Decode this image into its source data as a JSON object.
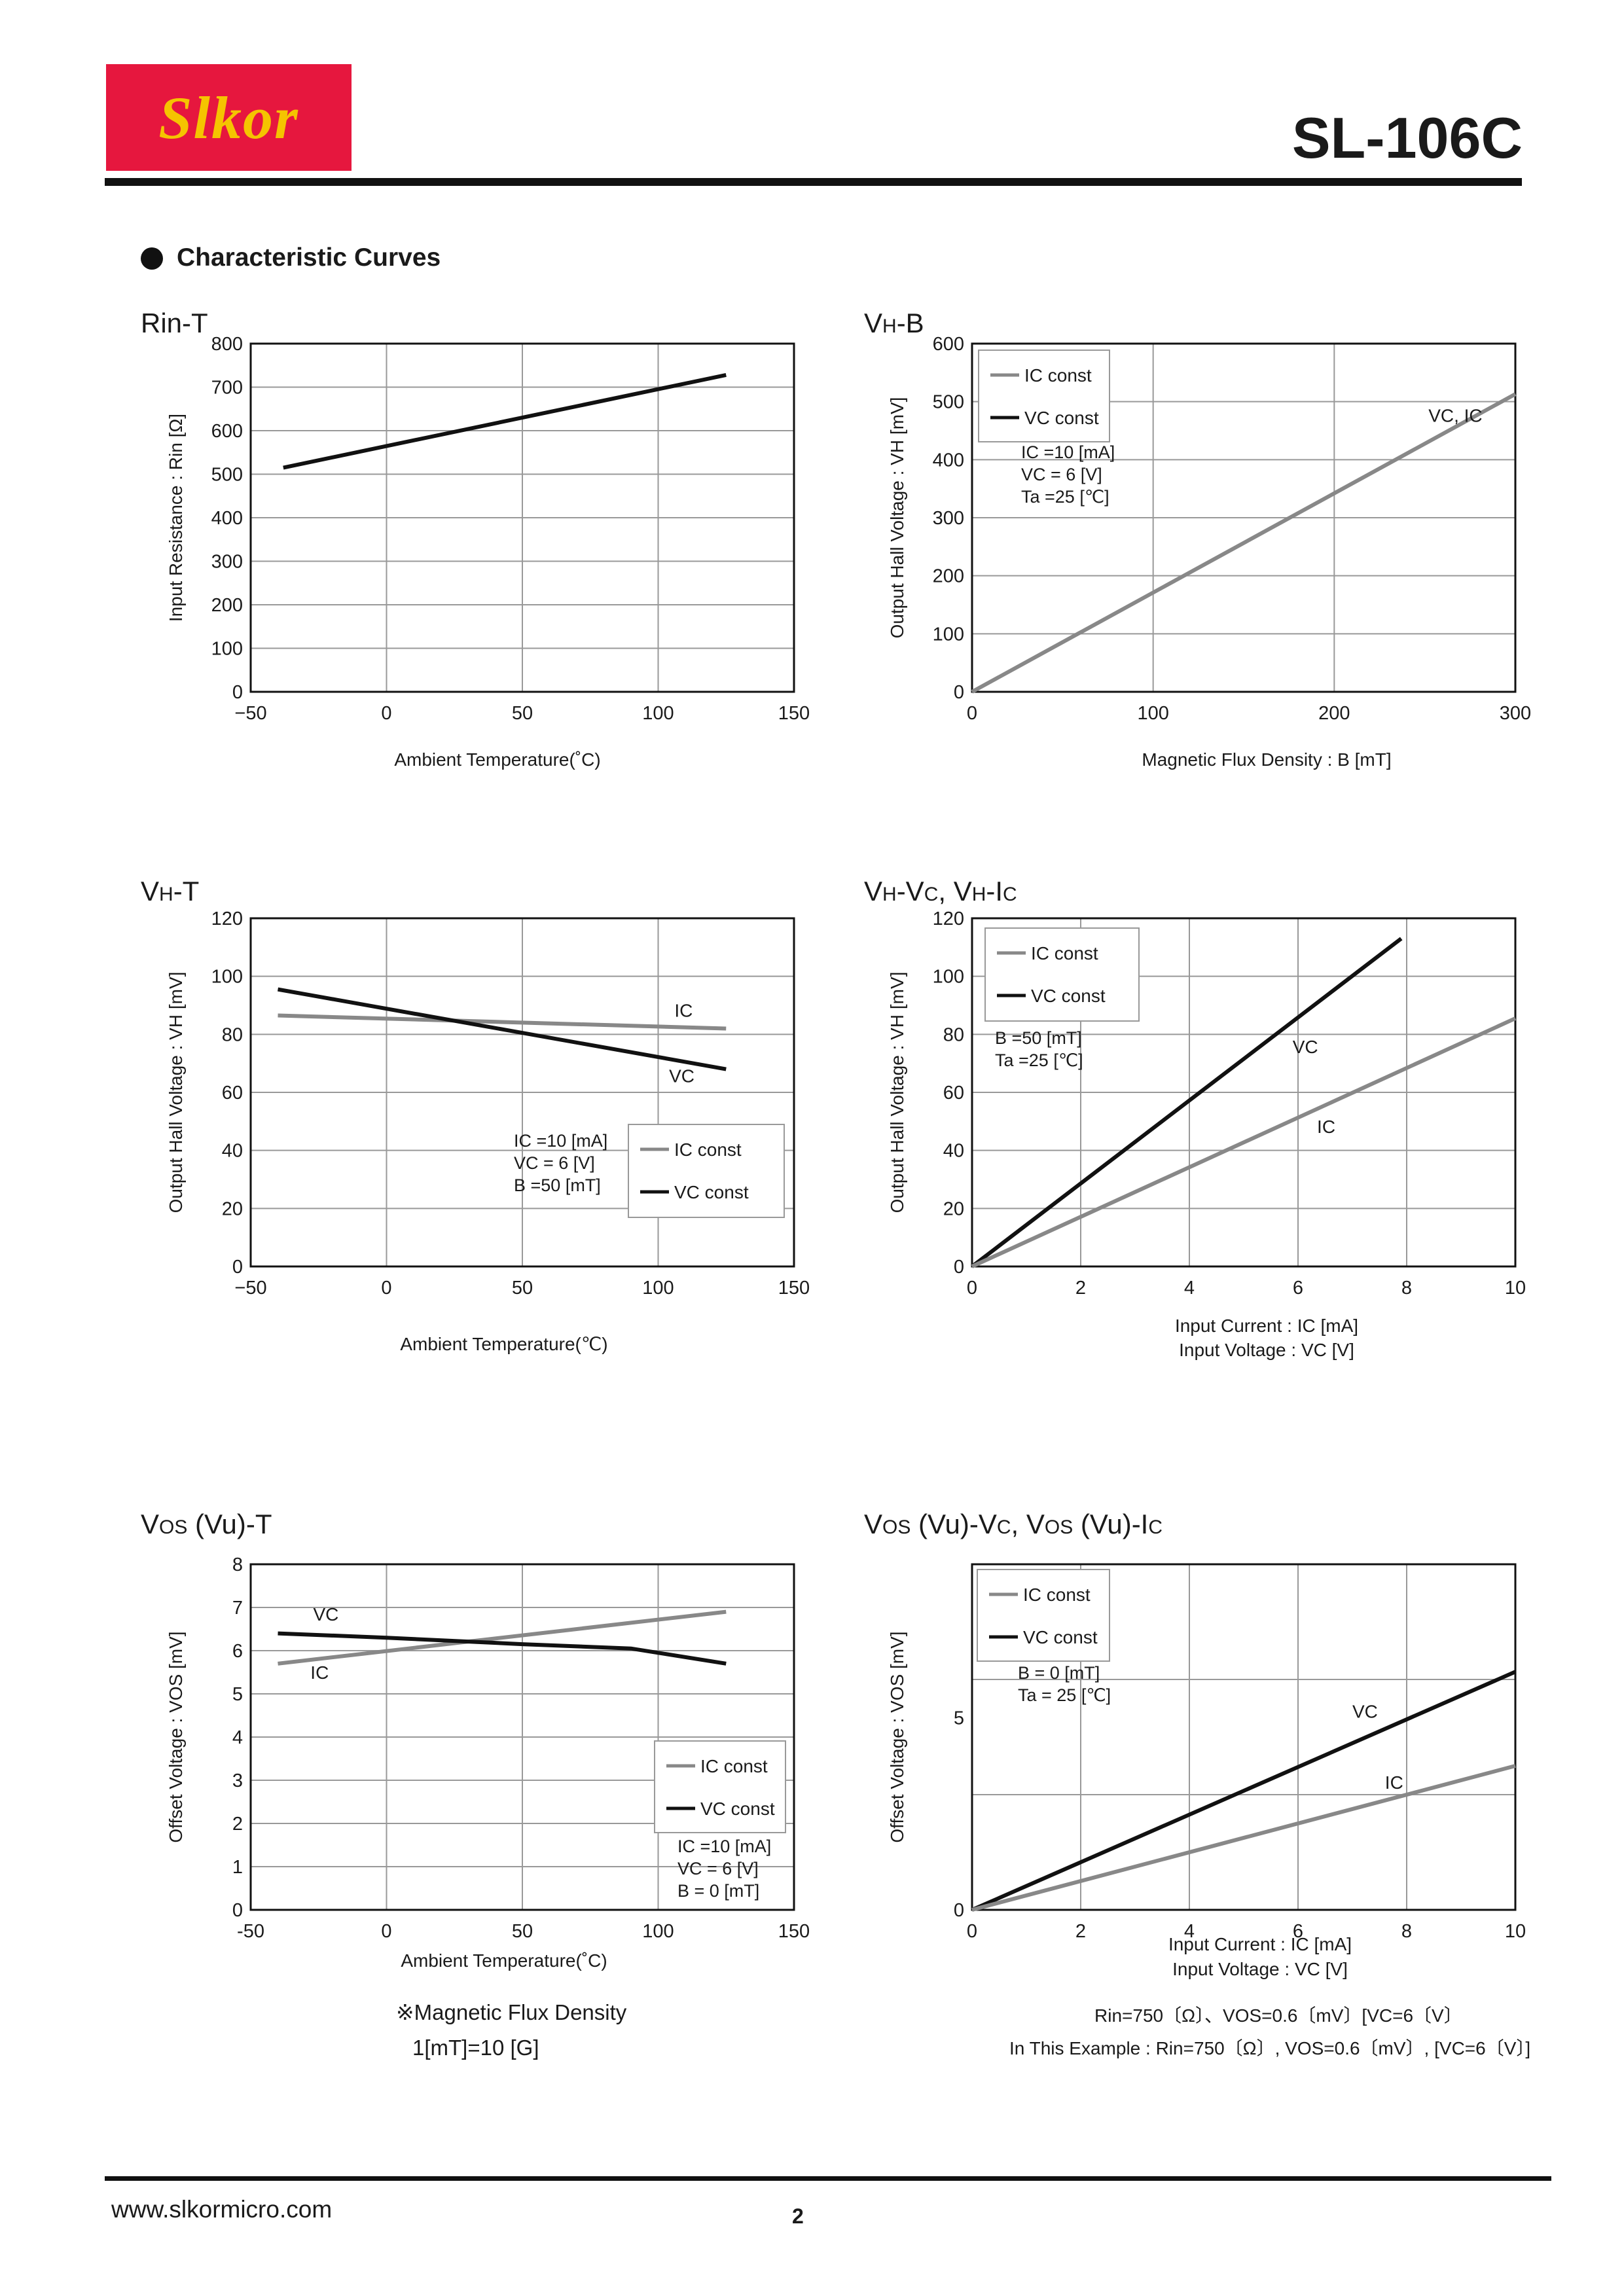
{
  "header": {
    "logo_text": "Slkor",
    "part_number": "SL-106C",
    "section_title": "Characteristic Curves"
  },
  "colors": {
    "logo_bg": "#e6173e",
    "logo_text": "#f5c400",
    "ic_const": "#888888",
    "vc_const": "#111111"
  },
  "charts": [
    {
      "id": "rin-t",
      "title_parts": [
        "Rin-T"
      ],
      "type": "line",
      "xlabel": "Ambient Temperature(˚C)",
      "ylabel": "Input Resistance : Rin [Ω]",
      "xlim": [
        -50,
        150
      ],
      "ylim": [
        0,
        800
      ],
      "xticks": [
        "−50",
        "0",
        "50",
        "100",
        "150"
      ],
      "yticks": [
        "0",
        "100",
        "200",
        "300",
        "400",
        "500",
        "600",
        "700",
        "800"
      ],
      "series": [
        {
          "color": "#111111",
          "x": [
            -38,
            125
          ],
          "y": [
            515,
            728
          ]
        }
      ],
      "labels": [],
      "legend": [],
      "conditions": []
    },
    {
      "id": "vh-b",
      "title_parts": [
        "V",
        "H",
        "-B"
      ],
      "type": "line",
      "xlabel": "Magnetic Flux Density : B [mT]",
      "ylabel": "Output Hall Voltage : VH [mV]",
      "xlim": [
        0,
        300
      ],
      "ylim": [
        0,
        600
      ],
      "xticks": [
        "0",
        "100",
        "200",
        "300"
      ],
      "yticks": [
        "0",
        "100",
        "200",
        "300",
        "400",
        "500",
        "600"
      ],
      "series": [
        {
          "color": "#888888",
          "x": [
            0,
            300
          ],
          "y": [
            0,
            513
          ]
        }
      ],
      "labels": [
        {
          "text": "VC, IC",
          "x": 252,
          "y": 465
        }
      ],
      "legend": [
        "IC const",
        "VC const"
      ],
      "conditions": [
        "IC  =10 [mA]",
        "VC  = 6  [V]",
        "Ta  =25 [℃]"
      ]
    },
    {
      "id": "vh-t",
      "title_parts": [
        "V",
        "H",
        "-T"
      ],
      "type": "line",
      "xlabel": "Ambient Temperature(℃)",
      "ylabel": "Output Hall Voltage : VH [mV]",
      "xlim": [
        -50,
        150
      ],
      "ylim": [
        0,
        120
      ],
      "xticks": [
        "−50",
        "0",
        "50",
        "100",
        "150"
      ],
      "yticks": [
        "0",
        "20",
        "40",
        "60",
        "80",
        "100",
        "120"
      ],
      "series": [
        {
          "color": "#888888",
          "x": [
            -40,
            125
          ],
          "y": [
            86.5,
            82
          ]
        },
        {
          "color": "#111111",
          "x": [
            -40,
            125
          ],
          "y": [
            95.5,
            68
          ]
        }
      ],
      "labels": [
        {
          "text": "IC",
          "x": 106,
          "y": 86
        },
        {
          "text": "VC",
          "x": 104,
          "y": 63.5
        }
      ],
      "legend": [
        "IC const",
        "VC const"
      ],
      "conditions": [
        "IC  =10 [mA]",
        "VC  = 6  [V]",
        "B  =50 [mT]"
      ]
    },
    {
      "id": "vh-vc-ic",
      "title_parts": [
        "V",
        "H",
        "-V",
        "C",
        ", V",
        "H",
        "-I",
        "C"
      ],
      "type": "line",
      "xlabel": "Input Current : IC [mA]",
      "xlabel2": "Input Voltage : VC [V]",
      "ylabel": "Output Hall Voltage : VH [mV]",
      "xlim": [
        0,
        10
      ],
      "ylim": [
        0,
        120
      ],
      "xticks": [
        "0",
        "2",
        "4",
        "6",
        "8",
        "10"
      ],
      "yticks": [
        "0",
        "20",
        "40",
        "60",
        "80",
        "100",
        "120"
      ],
      "series": [
        {
          "color": "#111111",
          "x": [
            0,
            7.9
          ],
          "y": [
            0,
            113
          ]
        },
        {
          "color": "#888888",
          "x": [
            0,
            10
          ],
          "y": [
            0,
            85.5
          ]
        }
      ],
      "labels": [
        {
          "text": "VC",
          "x": 5.9,
          "y": 73.5
        },
        {
          "text": "IC",
          "x": 6.35,
          "y": 46
        }
      ],
      "legend": [
        "IC const",
        "VC const"
      ],
      "conditions": [
        "B  =50 [mT]",
        "Ta  =25 [℃]"
      ]
    },
    {
      "id": "vos-t",
      "title_parts": [
        "V",
        "OS",
        " (Vu)-T"
      ],
      "type": "line",
      "xlabel": "Ambient Temperature(˚C)",
      "ylabel": "Offset Voltage : VOS [mV]",
      "xlim": [
        -50,
        150
      ],
      "ylim": [
        0,
        8
      ],
      "xticks": [
        "-50",
        "0",
        "50",
        "100",
        "150"
      ],
      "yticks": [
        "0",
        "1",
        "2",
        "3",
        "4",
        "5",
        "6",
        "7",
        "8"
      ],
      "series": [
        {
          "color": "#888888",
          "x": [
            -40,
            125
          ],
          "y": [
            5.7,
            6.9
          ]
        },
        {
          "color": "#111111",
          "x": [
            -40,
            0,
            50,
            90,
            100,
            125
          ],
          "y": [
            6.4,
            6.3,
            6.15,
            6.05,
            5.95,
            5.7
          ]
        }
      ],
      "labels": [
        {
          "text": "VC",
          "x": -27,
          "y": 6.7
        },
        {
          "text": "IC",
          "x": -28,
          "y": 5.35
        }
      ],
      "legend": [
        "IC const",
        "VC const"
      ],
      "conditions": [
        "IC  =10 [mA]",
        "VC  = 6  [V]",
        "B   = 0  [mT]"
      ]
    },
    {
      "id": "vos-vc-ic",
      "title_parts": [
        "V",
        "OS",
        " (Vu)-V",
        "C",
        ", V",
        "OS",
        " (Vu)-I",
        "C"
      ],
      "type": "line",
      "xlabel": "Input Current : IC [mA]",
      "xlabel2": "Input Voltage : VC [V]",
      "ylabel": "Offset Voltage : VOS [mV]",
      "xlim": [
        0,
        10
      ],
      "ylim": [
        0,
        9
      ],
      "xticks": [
        "0",
        "2",
        "4",
        "6",
        "8",
        "10"
      ],
      "yticks": [
        "0",
        "5"
      ],
      "yticks_values": [
        0,
        5
      ],
      "series": [
        {
          "color": "#111111",
          "x": [
            0,
            10
          ],
          "y": [
            0,
            6.2
          ]
        },
        {
          "color": "#888888",
          "x": [
            0,
            10
          ],
          "y": [
            0,
            3.75
          ]
        }
      ],
      "labels": [
        {
          "text": "VC",
          "x": 7.0,
          "y": 5.0
        },
        {
          "text": "IC",
          "x": 7.6,
          "y": 3.15
        }
      ],
      "legend": [
        "IC const",
        "VC const"
      ],
      "conditions": [
        "B = 0 [mT]",
        "Ta = 25 [℃]"
      ]
    }
  ],
  "notes": {
    "flux_note_1": "※Magnetic Flux Density",
    "flux_note_2": "1[mT]=10 [G]",
    "example_1": "Rin=750〔Ω〕、VOS=0.6〔mV〕[VC=6〔V〕",
    "example_2": "In This Example : Rin=750〔Ω〕, VOS=0.6〔mV〕, [VC=6〔V〕]"
  },
  "footer": {
    "website": "www.slkormicro.com",
    "page_number": "2"
  }
}
